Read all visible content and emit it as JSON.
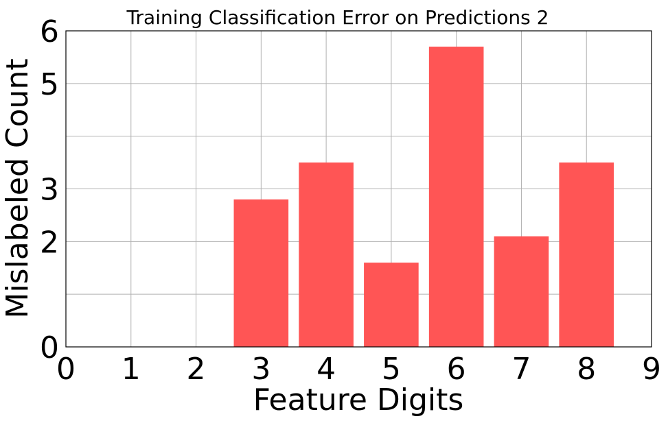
{
  "chart_data": {
    "type": "bar",
    "title": "Training Classification Error on Predictions 2",
    "xlabel": "Feature Digits",
    "ylabel": "Mislabeled Count",
    "x_ticks": [
      "0",
      "1",
      "2",
      "3",
      "4",
      "5",
      "6",
      "7",
      "8",
      "9"
    ],
    "y_tick_values": [
      0,
      1,
      2,
      3,
      4,
      5,
      6
    ],
    "y_tick_labels": [
      "0",
      "",
      "2",
      "3",
      "",
      "5",
      "6"
    ],
    "xlim": [
      0,
      9
    ],
    "ylim": [
      0,
      6
    ],
    "grid": true,
    "bar_color": "#ff5555",
    "x": [
      3,
      4,
      5,
      6,
      7,
      8
    ],
    "values": [
      2.8,
      3.5,
      1.6,
      5.7,
      2.1,
      3.5
    ]
  }
}
